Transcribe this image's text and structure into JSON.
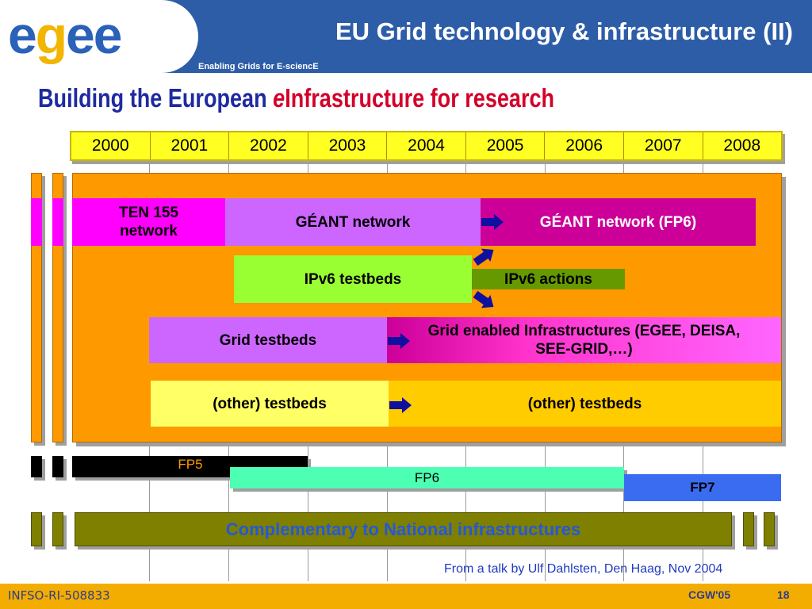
{
  "header": {
    "logo_letters": [
      "e",
      "g",
      "e",
      "e"
    ],
    "logo_colors": [
      "#2a62b8",
      "#f2b500",
      "#2a62b8",
      "#2a62b8"
    ],
    "title": "EU Grid technology & infrastructure (II)",
    "tagline": "Enabling Grids for E-sciencE"
  },
  "subtitle": {
    "part1": "Building the European ",
    "e": "e",
    "part2": "Infrastructure for research"
  },
  "years": [
    "2000",
    "2001",
    "2002",
    "2003",
    "2004",
    "2005",
    "2006",
    "2007",
    "2008"
  ],
  "rows": {
    "ten155": "TEN 155 network",
    "geant": "GÉANT network",
    "geant_fp6": "GÉANT network (FP6)",
    "ipv6_testbeds": "IPv6 testbeds",
    "ipv6_actions": "IPv6 actions",
    "grid_testbeds": "Grid testbeds",
    "grid_infra": "Grid enabled Infrastructures (EGEE, DEISA, SEE-GRID,…)",
    "other_testbeds_1": "(other) testbeds",
    "other_testbeds_2": "(other) testbeds"
  },
  "programmes": {
    "fp5": "FP5",
    "fp6": "FP6",
    "fp7": "FP7"
  },
  "complementary": "Complementary to National infrastructures",
  "credit": "From a talk by Ulf Dahlsten, Den Haag, Nov 2004",
  "footer": {
    "project": "INFSO-RI-508833",
    "event": "CGW'05",
    "page": "18"
  },
  "colors": {
    "header_blue": "#2e5da8",
    "orange_panel": "#ff9900",
    "magenta": "#ff00ff",
    "violet": "#cc66ff",
    "dark_magenta": "#cc0099",
    "lime": "#99ff33",
    "olive_green": "#669900",
    "pink": "#ff66ff",
    "light_yellow": "#ffff66",
    "gold": "#ffcc00",
    "fp6_green": "#4dffb3",
    "fp7_blue": "#3a6cf2",
    "olive": "#7f7f00",
    "footer_gold": "#f3ad00"
  }
}
